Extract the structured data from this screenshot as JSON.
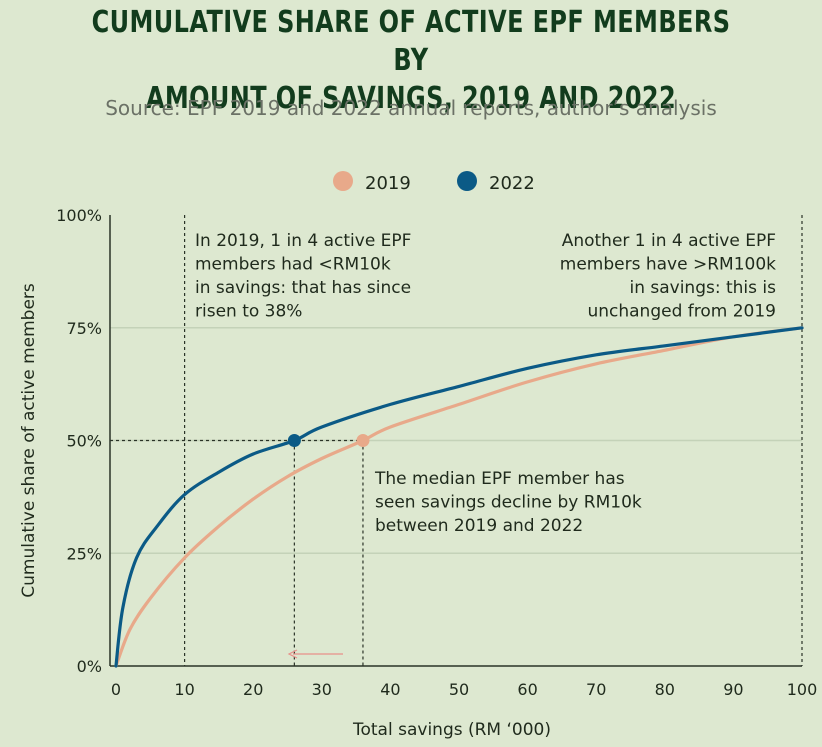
{
  "title_line1": "Cumulative share of active EPF members by",
  "title_line2": "amount of savings, 2019 and 2022",
  "subtitle": "Source: EPF 2019 and 2022 annual reports, author’s analysis",
  "chart_data": {
    "type": "line",
    "xlabel": "Total savings (RM ‘000)",
    "ylabel": "Cumulative share of active members",
    "xlim": [
      0,
      100
    ],
    "ylim": [
      0,
      100
    ],
    "xticks": [
      "0",
      "10",
      "20",
      "30",
      "40",
      "50",
      "60",
      "70",
      "80",
      "90",
      "100"
    ],
    "yticks": [
      "0%",
      "25%",
      "50%",
      "75%",
      "100%"
    ],
    "legend_position": "top-center",
    "grid": "horizontal",
    "series": [
      {
        "name": "2019",
        "color": "#e8a98a",
        "x": [
          0,
          2,
          5,
          10,
          15,
          20,
          25,
          30,
          36,
          40,
          50,
          60,
          70,
          80,
          90,
          100
        ],
        "y": [
          0,
          8,
          15,
          24,
          31,
          37,
          42,
          46,
          50,
          53,
          58,
          63,
          67,
          70,
          73,
          75
        ]
      },
      {
        "name": "2022",
        "color": "#0b5a86",
        "x": [
          0,
          1,
          3,
          6,
          10,
          15,
          20,
          26,
          30,
          40,
          50,
          60,
          70,
          80,
          90,
          100
        ],
        "y": [
          0,
          13,
          24,
          31,
          38,
          43,
          47,
          50,
          53,
          58,
          62,
          66,
          69,
          71,
          73,
          75
        ]
      }
    ],
    "markers": [
      {
        "series": "2022",
        "x": 26,
        "y": 50
      },
      {
        "series": "2019",
        "x": 36,
        "y": 50
      }
    ],
    "annotations": [
      {
        "id": "left",
        "lines": [
          "In 2019, 1 in 4 active EPF",
          "members had <RM10k",
          "in savings: that has since",
          "risen to 38%"
        ]
      },
      {
        "id": "right",
        "lines": [
          "Another 1 in 4 active EPF",
          "members have >RM100k",
          "in savings: this is",
          "unchanged from 2019"
        ]
      },
      {
        "id": "median",
        "lines": [
          "The median EPF member has",
          "seen savings decline by RM10k",
          "between 2019 and 2022"
        ]
      }
    ]
  }
}
